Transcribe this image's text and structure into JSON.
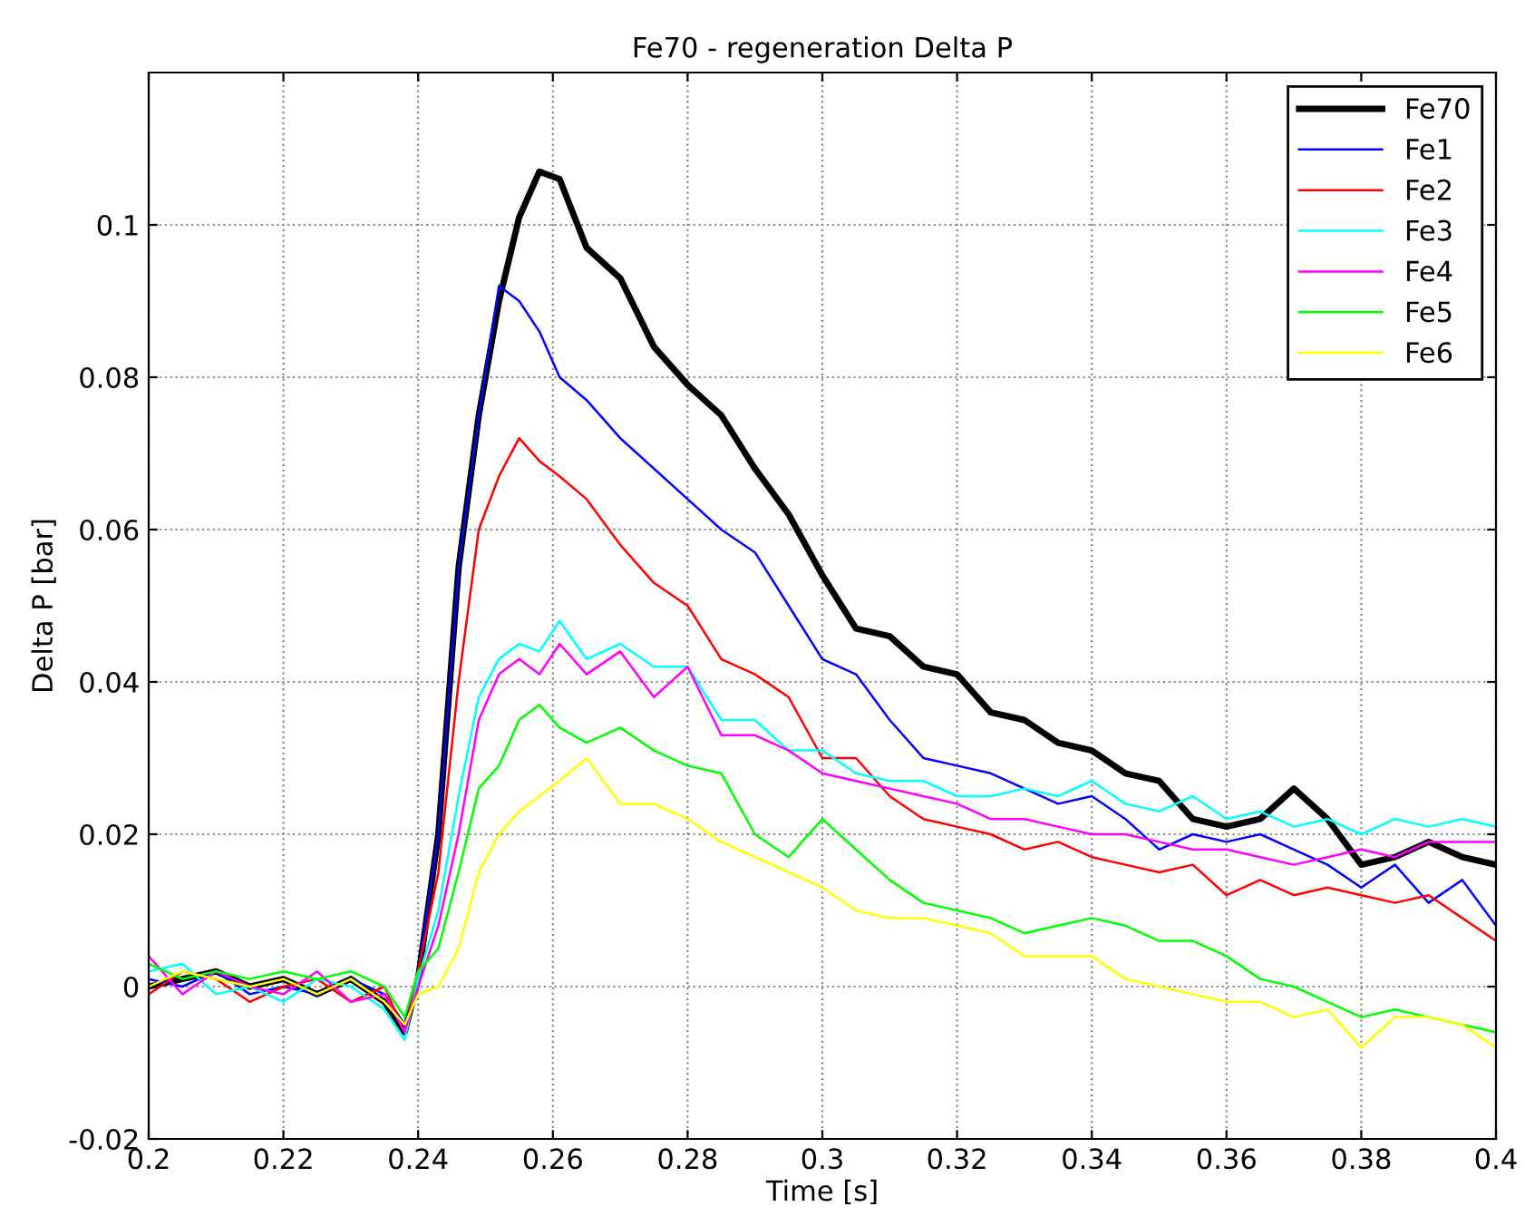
{
  "chart_data": {
    "type": "line",
    "title": "Fe70 - regeneration Delta P",
    "xlabel": "Time [s]",
    "ylabel": "Delta P [bar]",
    "x": [
      0.2,
      0.205,
      0.21,
      0.215,
      0.22,
      0.225,
      0.23,
      0.235,
      0.238,
      0.24,
      0.243,
      0.246,
      0.249,
      0.252,
      0.255,
      0.258,
      0.261,
      0.265,
      0.27,
      0.275,
      0.28,
      0.285,
      0.29,
      0.295,
      0.3,
      0.305,
      0.31,
      0.315,
      0.32,
      0.325,
      0.33,
      0.335,
      0.34,
      0.345,
      0.35,
      0.355,
      0.36,
      0.365,
      0.37,
      0.375,
      0.38,
      0.385,
      0.39,
      0.395,
      0.4
    ],
    "series": [
      {
        "name": "Fe70",
        "color": "#000000",
        "values": [
          0,
          0.001,
          0.002,
          0,
          0.001,
          -0.001,
          0.001,
          -0.002,
          -0.006,
          0.001,
          0.02,
          0.055,
          0.075,
          0.09,
          0.101,
          0.107,
          0.106,
          0.097,
          0.093,
          0.084,
          0.079,
          0.075,
          0.068,
          0.062,
          0.054,
          0.047,
          0.046,
          0.042,
          0.041,
          0.036,
          0.035,
          0.032,
          0.031,
          0.028,
          0.027,
          0.022,
          0.021,
          0.022,
          0.026,
          0.022,
          0.016,
          0.017,
          0.019,
          0.017,
          0.016
        ]
      },
      {
        "name": "Fe1",
        "color": "#0000ff",
        "values": [
          0.001,
          0,
          0.002,
          -0.001,
          0,
          -0.001,
          0.001,
          -0.001,
          -0.005,
          0.002,
          0.02,
          0.055,
          0.075,
          0.092,
          0.09,
          0.086,
          0.08,
          0.077,
          0.072,
          0.068,
          0.064,
          0.06,
          0.057,
          0.05,
          0.043,
          0.041,
          0.035,
          0.03,
          0.029,
          0.028,
          0.026,
          0.024,
          0.025,
          0.022,
          0.018,
          0.02,
          0.019,
          0.02,
          0.018,
          0.016,
          0.013,
          0.016,
          0.011,
          0.014,
          0.008
        ]
      },
      {
        "name": "Fe2",
        "color": "#ff0000",
        "values": [
          -0.001,
          0.002,
          0.001,
          -0.002,
          0,
          0.001,
          -0.002,
          0,
          -0.006,
          0.002,
          0.015,
          0.04,
          0.06,
          0.067,
          0.072,
          0.069,
          0.067,
          0.064,
          0.058,
          0.053,
          0.05,
          0.043,
          0.041,
          0.038,
          0.03,
          0.03,
          0.025,
          0.022,
          0.021,
          0.02,
          0.018,
          0.019,
          0.017,
          0.016,
          0.015,
          0.016,
          0.012,
          0.014,
          0.012,
          0.013,
          0.012,
          0.011,
          0.012,
          0.009,
          0.006
        ]
      },
      {
        "name": "Fe3",
        "color": "#00ffff",
        "values": [
          0.002,
          0.003,
          -0.001,
          0,
          -0.002,
          0.001,
          0,
          -0.003,
          -0.007,
          0.001,
          0.01,
          0.025,
          0.038,
          0.043,
          0.045,
          0.044,
          0.048,
          0.043,
          0.045,
          0.042,
          0.042,
          0.035,
          0.035,
          0.031,
          0.031,
          0.028,
          0.027,
          0.027,
          0.025,
          0.025,
          0.026,
          0.025,
          0.027,
          0.024,
          0.023,
          0.025,
          0.022,
          0.023,
          0.021,
          0.022,
          0.02,
          0.022,
          0.021,
          0.022,
          0.021
        ]
      },
      {
        "name": "Fe4",
        "color": "#ff00ff",
        "values": [
          0.004,
          -0.001,
          0.002,
          0,
          -0.001,
          0.002,
          -0.002,
          -0.001,
          -0.006,
          0,
          0.008,
          0.02,
          0.035,
          0.041,
          0.043,
          0.041,
          0.045,
          0.041,
          0.044,
          0.038,
          0.042,
          0.033,
          0.033,
          0.031,
          0.028,
          0.027,
          0.026,
          0.025,
          0.024,
          0.022,
          0.022,
          0.021,
          0.02,
          0.02,
          0.019,
          0.018,
          0.018,
          0.017,
          0.016,
          0.017,
          0.018,
          0.017,
          0.019,
          0.019,
          0.019
        ]
      },
      {
        "name": "Fe5",
        "color": "#00ff00",
        "values": [
          0.003,
          0.001,
          0.002,
          0.001,
          0.002,
          0.001,
          0.002,
          0,
          -0.004,
          0.002,
          0.005,
          0.015,
          0.026,
          0.029,
          0.035,
          0.037,
          0.034,
          0.032,
          0.034,
          0.031,
          0.029,
          0.028,
          0.02,
          0.017,
          0.022,
          0.018,
          0.014,
          0.011,
          0.01,
          0.009,
          0.007,
          0.008,
          0.009,
          0.008,
          0.006,
          0.006,
          0.004,
          0.001,
          0,
          -0.002,
          -0.004,
          -0.003,
          -0.004,
          -0.005,
          -0.006
        ]
      },
      {
        "name": "Fe6",
        "color": "#ffff00",
        "values": [
          0,
          0.002,
          0.001,
          0,
          0.001,
          -0.001,
          0.001,
          -0.002,
          -0.005,
          -0.001,
          0,
          0.005,
          0.015,
          0.02,
          0.023,
          0.025,
          0.027,
          0.03,
          0.024,
          0.024,
          0.022,
          0.019,
          0.017,
          0.015,
          0.013,
          0.01,
          0.009,
          0.009,
          0.008,
          0.007,
          0.004,
          0.004,
          0.004,
          0.001,
          0,
          -0.001,
          -0.002,
          -0.002,
          -0.004,
          -0.003,
          -0.008,
          -0.004,
          -0.004,
          -0.005,
          -0.008
        ]
      }
    ],
    "xlim": [
      0.2,
      0.4
    ],
    "xticks": [
      0.2,
      0.22,
      0.24,
      0.26,
      0.28,
      0.3,
      0.32,
      0.34,
      0.36,
      0.38,
      0.4
    ],
    "ylim": [
      -0.02,
      0.12
    ],
    "yticks": [
      -0.02,
      0,
      0.02,
      0.04,
      0.06,
      0.08,
      0.1
    ],
    "grid": true,
    "legend": "top right",
    "line_style": "solid"
  }
}
